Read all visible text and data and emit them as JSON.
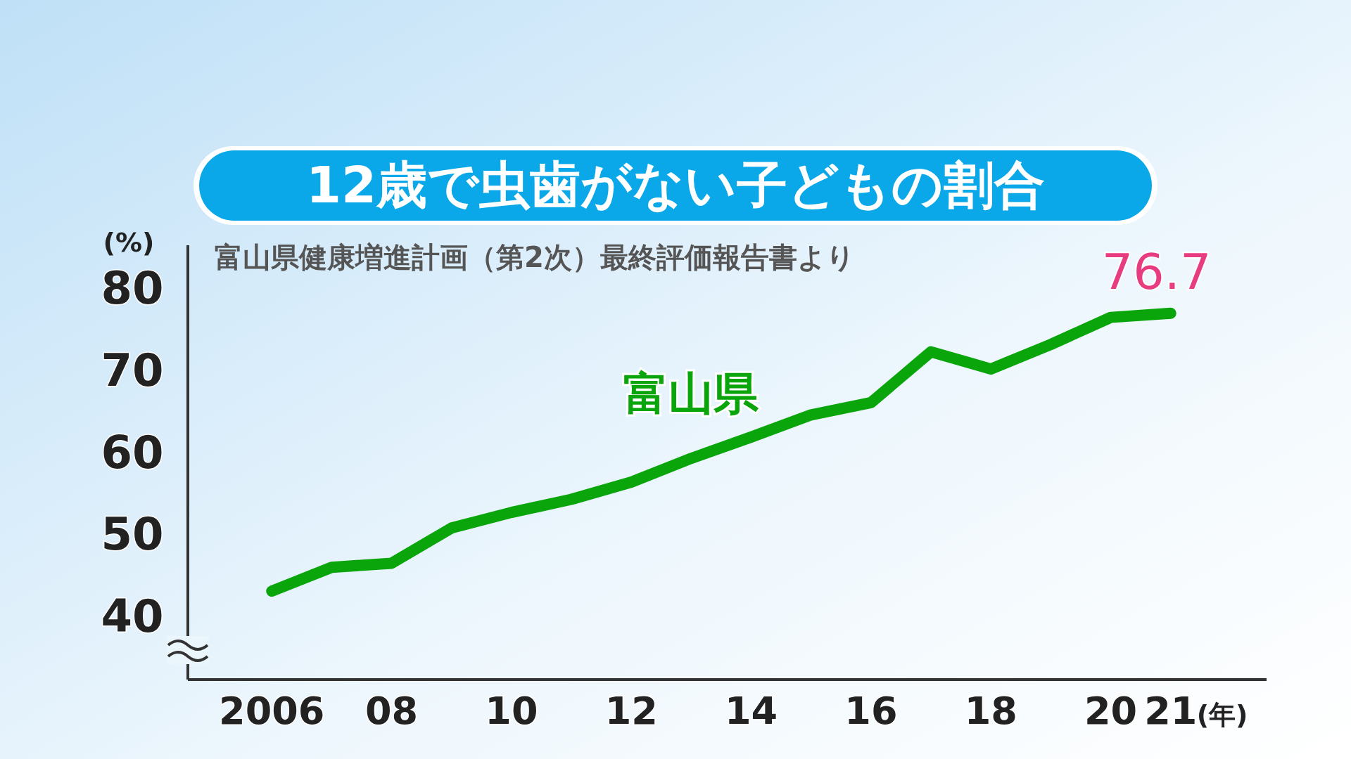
{
  "chart_data": {
    "type": "line",
    "title": "12歳で虫歯がない子どもの割合",
    "annotations": [
      "富山県健康増進計画（第2次）最終評価報告書より"
    ],
    "xlabel": "(年)",
    "ylabel": "(%)",
    "x": [
      2006,
      2007,
      2008,
      2009,
      2010,
      2011,
      2012,
      2013,
      2014,
      2015,
      2016,
      2017,
      2018,
      2019,
      2020,
      2021
    ],
    "series": [
      {
        "name": "富山県",
        "color": "#0aa50a",
        "values": [
          42.8,
          45.7,
          46.2,
          50.5,
          52.4,
          54.0,
          56.1,
          59.0,
          61.6,
          64.3,
          65.8,
          72.0,
          69.9,
          72.9,
          76.2,
          76.7
        ],
        "value_labels": [
          null,
          null,
          null,
          null,
          null,
          null,
          null,
          null,
          null,
          null,
          null,
          null,
          null,
          null,
          null,
          "76.7"
        ]
      }
    ],
    "xlim": [
      2004.6,
      2022.6
    ],
    "ylim": [
      32,
      85
    ],
    "xticks": [
      {
        "value": 2006,
        "label": "2006"
      },
      {
        "value": 2008,
        "label": "08"
      },
      {
        "value": 2010,
        "label": "10"
      },
      {
        "value": 2012,
        "label": "12"
      },
      {
        "value": 2014,
        "label": "14"
      },
      {
        "value": 2016,
        "label": "16"
      },
      {
        "value": 2018,
        "label": "18"
      },
      {
        "value": 2020,
        "label": "20"
      },
      {
        "value": 2021,
        "label": "21"
      }
    ],
    "yticks": [
      40,
      50,
      60,
      70,
      80
    ]
  }
}
